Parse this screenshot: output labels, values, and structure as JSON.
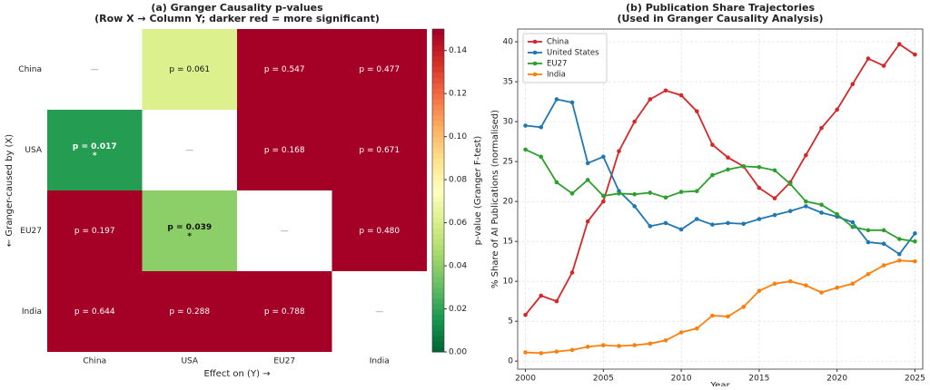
{
  "chart_data": [
    {
      "type": "heatmap",
      "title": "(a) Granger Causality p-values",
      "subtitle": "(Row X → Column Y; darker red = more significant)",
      "x_categories": [
        "China",
        "USA",
        "EU27",
        "India"
      ],
      "y_categories": [
        "China",
        "USA",
        "EU27",
        "India"
      ],
      "values": [
        [
          null,
          0.061,
          0.547,
          0.477
        ],
        [
          0.017,
          null,
          0.168,
          0.671
        ],
        [
          0.197,
          0.039,
          null,
          0.48
        ],
        [
          0.644,
          0.288,
          0.788,
          null
        ]
      ],
      "value_labels": [
        [
          "—",
          "p = 0.061",
          "p = 0.547",
          "p = 0.477"
        ],
        [
          "p = 0.017",
          "—",
          "p = 0.168",
          "p = 0.671"
        ],
        [
          "p = 0.197",
          "p = 0.039",
          "—",
          "p = 0.480"
        ],
        [
          "p = 0.644",
          "p = 0.288",
          "p = 0.788",
          "—"
        ]
      ],
      "stars": [
        [
          null,
          null,
          null,
          null
        ],
        [
          "*",
          null,
          null,
          null
        ],
        [
          null,
          "*",
          null,
          null
        ],
        [
          null,
          null,
          null,
          null
        ]
      ],
      "xlabel": "Effect on (Y) →",
      "ylabel": "← Granger-caused by (X)",
      "colormap": [
        "#006837",
        "#1a9850",
        "#66bd63",
        "#a6d96a",
        "#d9ef8b",
        "#ffffbf",
        "#fee08b",
        "#fdae61",
        "#f46d43",
        "#d73027",
        "#a50026"
      ],
      "colorbar": {
        "label": "p-value (Granger F-test)",
        "lim": [
          0,
          0.15
        ],
        "ticks": [
          {
            "value": 0,
            "label": "0.00"
          },
          {
            "value": 0.02,
            "label": "0.02"
          },
          {
            "value": 0.04,
            "label": "0.04"
          },
          {
            "value": 0.06,
            "label": "0.06"
          },
          {
            "value": 0.08,
            "label": "0.08"
          },
          {
            "value": 0.1,
            "label": "0.10"
          },
          {
            "value": 0.12,
            "label": "0.12"
          },
          {
            "value": 0.14,
            "label": "0.14"
          }
        ]
      }
    },
    {
      "type": "line",
      "title": "(b) Publication Share Trajectories",
      "subtitle": "(Used in Granger Causality Analysis)",
      "xlabel": "Year",
      "ylabel": "% Share of AI Publications (normalised)",
      "x": [
        2000,
        2001,
        2002,
        2003,
        2004,
        2005,
        2006,
        2007,
        2008,
        2009,
        2010,
        2011,
        2012,
        2013,
        2014,
        2015,
        2016,
        2017,
        2018,
        2019,
        2020,
        2021,
        2022,
        2023,
        2024,
        2025
      ],
      "series": [
        {
          "name": "China",
          "color": "#d62728",
          "values": [
            5.8,
            8.2,
            7.5,
            11.1,
            17.5,
            20.0,
            26.3,
            30.0,
            32.8,
            33.9,
            33.3,
            31.3,
            27.1,
            25.5,
            24.4,
            21.7,
            20.4,
            22.4,
            25.8,
            29.2,
            31.5,
            34.7,
            37.9,
            37.0,
            39.7,
            38.4
          ]
        },
        {
          "name": "United States",
          "color": "#1f77b4",
          "values": [
            29.5,
            29.3,
            32.8,
            32.4,
            24.8,
            25.6,
            21.3,
            19.4,
            16.9,
            17.3,
            16.5,
            17.8,
            17.1,
            17.3,
            17.2,
            17.8,
            18.3,
            18.8,
            19.4,
            18.6,
            18.1,
            17.4,
            14.9,
            14.7,
            13.4,
            16.0
          ]
        },
        {
          "name": "EU27",
          "color": "#2ca02c",
          "values": [
            26.5,
            25.6,
            22.4,
            21.0,
            22.7,
            20.7,
            21.0,
            20.9,
            21.1,
            20.5,
            21.2,
            21.3,
            23.3,
            24.0,
            24.4,
            24.3,
            23.9,
            22.2,
            20.0,
            19.6,
            18.4,
            16.8,
            16.4,
            16.4,
            15.3,
            15.0
          ]
        },
        {
          "name": "India",
          "color": "#ff7f0e",
          "values": [
            1.1,
            1.0,
            1.2,
            1.4,
            1.8,
            2.0,
            1.9,
            2.0,
            2.2,
            2.6,
            3.6,
            4.1,
            5.7,
            5.6,
            6.8,
            8.8,
            9.7,
            10.0,
            9.5,
            8.6,
            9.2,
            9.7,
            10.9,
            12.0,
            12.6,
            12.5
          ]
        }
      ],
      "xlim": [
        1999.5,
        2025.5
      ],
      "ylim": [
        -1,
        41.6
      ],
      "xticks": [
        2000,
        2005,
        2010,
        2015,
        2020,
        2025
      ],
      "yticks": [
        0,
        5,
        10,
        15,
        20,
        25,
        30,
        35,
        40
      ],
      "grid": true,
      "legend": "upper left"
    }
  ]
}
